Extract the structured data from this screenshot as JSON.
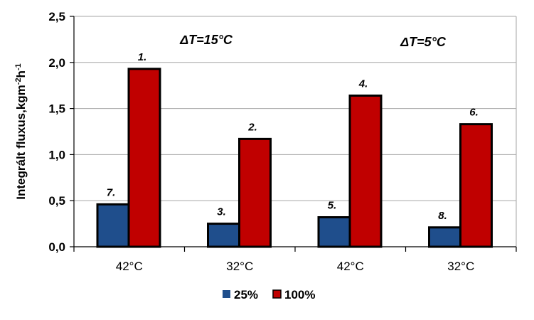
{
  "chart_data": {
    "type": "bar",
    "categories": [
      "42°C",
      "32°C",
      "42°C",
      "32°C"
    ],
    "series": [
      {
        "name": "25%",
        "color": "#1f4e8c",
        "values": [
          0.46,
          0.25,
          0.32,
          0.21
        ],
        "labels": [
          "7.",
          "3.",
          "5.",
          "8."
        ]
      },
      {
        "name": "100%",
        "color": "#c00000",
        "values": [
          1.93,
          1.17,
          1.64,
          1.33
        ],
        "labels": [
          "1.",
          "2.",
          "4.",
          "6."
        ]
      }
    ],
    "ylabel_main": "Integrált fluxus,kgm",
    "ylabel_sup1": "-2",
    "ylabel_mid": "h",
    "ylabel_sup2": "-1",
    "ylim": [
      0,
      2.5
    ],
    "yticks": [
      "0,0",
      "0,5",
      "1,0",
      "1,5",
      "2,0",
      "2,5"
    ],
    "ytick_values": [
      0,
      0.5,
      1.0,
      1.5,
      2.0,
      2.5
    ],
    "annotations": [
      {
        "text": "ΔT=15°C",
        "group": "left"
      },
      {
        "text": "ΔT=5°C",
        "group": "right"
      }
    ],
    "grid": true,
    "legend_position": "bottom"
  }
}
